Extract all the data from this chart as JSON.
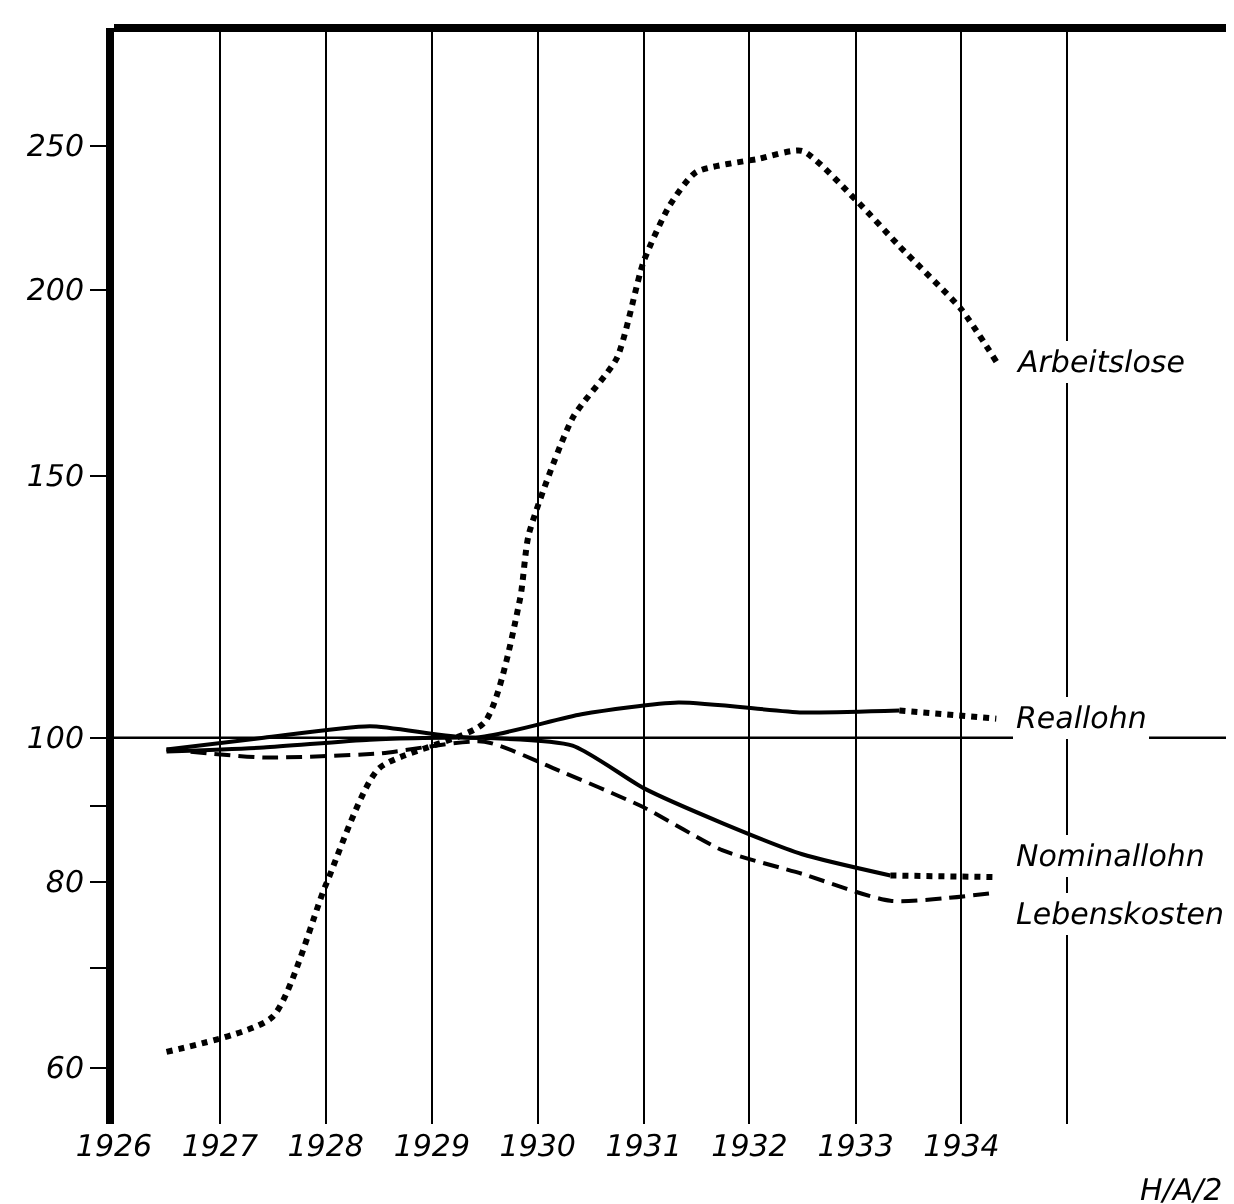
{
  "chart_data": {
    "type": "line",
    "log": "y",
    "grid": "x",
    "legend": false,
    "xlim": [
      "1926-01-01",
      "1936-07-01"
    ],
    "xticks": [
      {
        "value": "1926-01-01",
        "label": "1926"
      },
      {
        "value": "1927-01-01",
        "label": "1927"
      },
      {
        "value": "1928-01-01",
        "label": "1928"
      },
      {
        "value": "1929-01-01",
        "label": "1929"
      },
      {
        "value": "1930-01-01",
        "label": "1930"
      },
      {
        "value": "1931-01-01",
        "label": "1931"
      },
      {
        "value": "1932-01-01",
        "label": "1932"
      },
      {
        "value": "1933-01-01",
        "label": "1933"
      },
      {
        "value": "1934-01-01",
        "label": "1934"
      },
      {
        "value": "1935-01-01",
        "label": null
      }
    ],
    "ylim": [
      55,
      300
    ],
    "yticks": [
      60,
      {
        "value": 70,
        "label": null
      },
      80,
      {
        "value": 90,
        "label": null
      },
      100,
      150,
      200,
      250
    ],
    "ref_lines": [
      {
        "axis": "y",
        "value": 100,
        "color": "#000000"
      }
    ],
    "annotations": [
      "H/A/2"
    ],
    "series": [
      {
        "name": "Arbeitslose",
        "color": "#000000",
        "line_style": "dotted",
        "x": [
          "1926-07",
          "1927-07",
          "1928-01",
          "1928-07",
          "1929-07",
          "1929-11",
          "1929-12",
          "1930-05",
          "1930-10",
          "1931-01",
          "1931-04",
          "1931-07",
          "1932-02",
          "1932-07",
          "1933-01",
          "1933-06",
          "1934-01",
          "1934-05"
        ],
        "values": [
          61.5,
          64.9,
          79.6,
          95.3,
          102.4,
          124,
          137,
          164,
          180,
          209,
          228,
          240,
          245,
          248,
          230,
          214,
          194,
          179
        ]
      },
      {
        "name": "Reallohn",
        "color": "#000000",
        "line_style": "solid",
        "x": [
          "1926-07",
          "1927-06",
          "1928-06",
          "1929-06",
          "1930-06",
          "1931-05",
          "1932-07",
          "1933-06"
        ],
        "values": [
          98.2,
          100,
          101.8,
          100,
          103.7,
          105.6,
          104,
          104.3
        ]
      },
      {
        "color": "#000000",
        "line_style": "dotted",
        "x": [
          "1933-06",
          "1934-05"
        ],
        "values": [
          104.3,
          103
        ]
      },
      {
        "name": "Nominallohn",
        "color": "#000000",
        "line_style": "solid",
        "x": [
          "1926-07",
          "1927-06",
          "1928-06",
          "1929-06",
          "1930-05",
          "1931-01",
          "1931-10",
          "1932-07",
          "1933-05"
        ],
        "values": [
          97.9,
          98.5,
          99.7,
          100,
          98.8,
          92.5,
          87.6,
          83.5,
          80.8
        ]
      },
      {
        "color": "#000000",
        "line_style": "dotted",
        "x": [
          "1933-05",
          "1934-05"
        ],
        "values": [
          80.8,
          80.6
        ]
      },
      {
        "name": "Lebenskosten",
        "color": "#000000",
        "line_style": "dashed",
        "x": [
          "1926-07",
          "1927-06",
          "1928-07",
          "1929-07",
          "1930-03",
          "1931-01",
          "1931-10",
          "1932-07",
          "1933-05",
          "1934-05"
        ],
        "values": [
          98.2,
          97.0,
          97.6,
          99.4,
          95.3,
          89.8,
          84.0,
          81.0,
          77.7,
          78.7
        ]
      }
    ]
  }
}
